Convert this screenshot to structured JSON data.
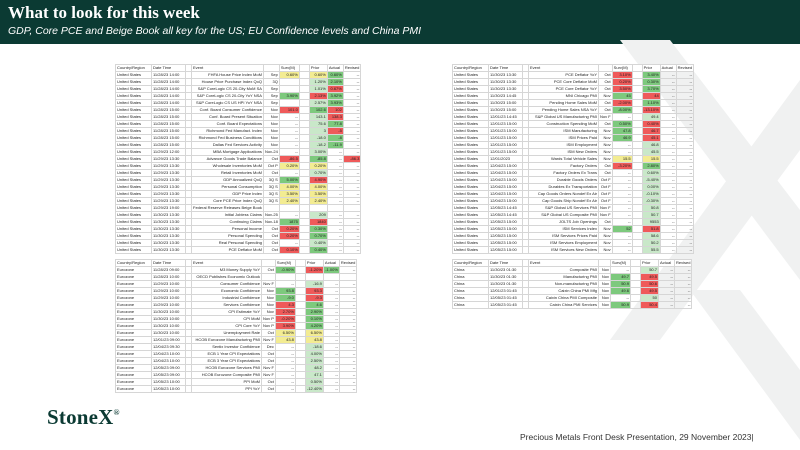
{
  "header": {
    "title": "What to look for this week",
    "subtitle": "GDP, Core PCE and Beige Book all key for the US; EU Confidence levels and China PMI"
  },
  "footer": {
    "logo": "StoneX",
    "logo_mark": "®",
    "text": "Precious Metals Front Desk Presentation, 29 November 2023|"
  },
  "columns": [
    "Country/Region",
    "Date Time",
    "",
    "Event",
    "",
    "Surv(M)",
    "",
    "Prior",
    "Actual",
    "Revised"
  ],
  "tables": {
    "us_left": [
      [
        "United States",
        "11/28/23 14:00",
        "",
        "FHFA House Price Index MoM",
        "Sep",
        "0.60%",
        "",
        "0.60%",
        "0.60%",
        "--"
      ],
      [
        "United States",
        "11/28/23 14:00",
        "",
        "House Price Purchase Index QoQ",
        "3Q",
        "",
        "",
        "1.20%",
        "2.10%",
        "--"
      ],
      [
        "United States",
        "11/28/23 14:00",
        "",
        "S&P CoreLogic CS 20-City MoM SA",
        "Sep",
        "",
        "",
        "1.01%",
        "0.67%",
        "--"
      ],
      [
        "United States",
        "11/28/23 14:00",
        "",
        "S&P CoreLogic CS 20-City YoY NSA",
        "Sep",
        "3.90%",
        "",
        "2.13%",
        "3.92%",
        "--"
      ],
      [
        "United States",
        "11/28/23 14:00",
        "",
        "S&P CoreLogic CS US HPI YoY NSA",
        "Sep",
        "",
        "",
        "2.57%",
        "3.93%",
        "--"
      ],
      [
        "United States",
        "11/28/23 15:00",
        "",
        "Conf. Board Consumer Confidence",
        "Nov",
        "101.0",
        "",
        "102.6",
        "102",
        "--"
      ],
      [
        "United States",
        "11/28/23 15:00",
        "",
        "Conf. Board Present Situation",
        "Nov",
        "--",
        "",
        "143.1",
        "138.3",
        "--"
      ],
      [
        "United States",
        "11/28/23 15:00",
        "",
        "Conf. Board Expectations",
        "Nov",
        "--",
        "",
        "75.6",
        "77.8",
        "--"
      ],
      [
        "United States",
        "11/28/23 15:00",
        "",
        "Richmond Fed Manufact. Index",
        "Nov",
        "--",
        "",
        "3",
        "-5",
        "--"
      ],
      [
        "United States",
        "11/28/23 15:00",
        "",
        "Richmond Fed Business Conditions",
        "Nov",
        "--",
        "",
        "-18.0",
        "-8",
        "--"
      ],
      [
        "United States",
        "11/28/23 15:00",
        "",
        "Dallas Fed Services Activity",
        "Nov",
        "--",
        "",
        "-18.2",
        "-11.9",
        "--"
      ],
      [
        "United States",
        "11/29/23 12:00",
        "",
        "MBA Mortgage Applications",
        "Nov-24",
        "--",
        "",
        "3.00%",
        "--",
        "--"
      ],
      [
        "United States",
        "11/29/23 13:30",
        "",
        "Advance Goods Trade Balance",
        "Oct",
        "-86.5",
        "",
        "-85.8",
        "--",
        "-86.3"
      ],
      [
        "United States",
        "11/29/23 13:30",
        "",
        "Wholesale Inventories MoM",
        "Oct P",
        "0.20%",
        "",
        "0.20%",
        "--",
        "--"
      ],
      [
        "United States",
        "11/29/23 13:30",
        "",
        "Retail Inventories MoM",
        "Oct",
        "--",
        "",
        "0.70%",
        "--",
        "--"
      ],
      [
        "United States",
        "11/29/23 13:30",
        "",
        "GDP Annualized QoQ",
        "3Q S",
        "5.00%",
        "",
        "4.90%",
        "--",
        "--"
      ],
      [
        "United States",
        "11/29/23 13:30",
        "",
        "Personal Consumption",
        "3Q S",
        "4.00%",
        "",
        "4.00%",
        "--",
        "--"
      ],
      [
        "United States",
        "11/29/23 13:30",
        "",
        "GDP Price Index",
        "3Q S",
        "3.50%",
        "",
        "3.50%",
        "--",
        "--"
      ],
      [
        "United States",
        "11/29/23 13:30",
        "",
        "Core PCE Price Index QoQ",
        "3Q S",
        "2.40%",
        "",
        "2.40%",
        "--",
        "--"
      ],
      [
        "United States",
        "11/29/23 19:00",
        "",
        "Federal Reserve Releases Beige Book",
        "",
        "",
        "",
        "",
        "",
        ""
      ],
      [
        "United States",
        "11/30/23 13:30",
        "",
        "Initial Jobless Claims",
        "Nov-25",
        "--",
        "",
        "209",
        "--",
        "--"
      ],
      [
        "United States",
        "11/30/23 13:30",
        "",
        "Continuing Claims",
        "Nov-18",
        "1875",
        "",
        "1840",
        "--",
        "--"
      ],
      [
        "United States",
        "11/30/23 13:30",
        "",
        "Personal Income",
        "Oct",
        "0.20%",
        "",
        "0.30%",
        "--",
        "--"
      ],
      [
        "United States",
        "11/30/23 13:30",
        "",
        "Personal Spending",
        "Oct",
        "0.20%",
        "",
        "0.70%",
        "--",
        "--"
      ],
      [
        "United States",
        "11/30/23 13:30",
        "",
        "Real Personal Spending",
        "Oct",
        "--",
        "",
        "0.40%",
        "--",
        "--"
      ],
      [
        "United States",
        "11/30/23 13:30",
        "",
        "PCE Deflator MoM",
        "Oct",
        "0.10%",
        "",
        "0.40%",
        "--",
        "--"
      ]
    ],
    "us_right": [
      [
        "United States",
        "11/30/23 13:30",
        "",
        "PCE Deflator YoY",
        "Oct",
        "3.10%",
        "",
        "3.40%",
        "--",
        "--"
      ],
      [
        "United States",
        "11/30/23 13:30",
        "",
        "PCE Core Deflator MoM",
        "Oct",
        "0.20%",
        "",
        "0.30%",
        "--",
        "--"
      ],
      [
        "United States",
        "11/30/23 13:30",
        "",
        "PCE Core Deflator YoY",
        "Oct",
        "3.50%",
        "",
        "3.70%",
        "--",
        "--"
      ],
      [
        "United States",
        "11/30/23 14:45",
        "",
        "MNI Chicago PMI",
        "Nov",
        "45",
        "",
        "44",
        "--",
        "--"
      ],
      [
        "United States",
        "11/30/23 15:00",
        "",
        "Pending Home Sales MoM",
        "Oct",
        "-2.00%",
        "",
        "1.10%",
        "--",
        "--"
      ],
      [
        "United States",
        "11/30/23 15:00",
        "",
        "Pending Home Sales NSA YoY",
        "Oct",
        "-8.00%",
        "",
        "-13.10%",
        "--",
        "--"
      ],
      [
        "United States",
        "12/01/23 14:45",
        "",
        "S&P Global US Manufacturing PMI",
        "Nov F",
        "--",
        "",
        "49.4",
        "--",
        "--"
      ],
      [
        "United States",
        "12/01/23 15:00",
        "",
        "Construction Spending MoM",
        "Oct",
        "0.50%",
        "",
        "0.40%",
        "--",
        "--"
      ],
      [
        "United States",
        "12/01/23 15:00",
        "",
        "ISM Manufacturing",
        "Nov",
        "47.8",
        "",
        "46.7",
        "--",
        "--"
      ],
      [
        "United States",
        "12/01/23 15:00",
        "",
        "ISM Prices Paid",
        "Nov",
        "46.9",
        "",
        "45.1",
        "--",
        "--"
      ],
      [
        "United States",
        "12/01/23 15:00",
        "",
        "ISM Employment",
        "Nov",
        "--",
        "",
        "46.8",
        "--",
        "--"
      ],
      [
        "United States",
        "12/01/23 15:00",
        "",
        "ISM New Orders",
        "Nov",
        "--",
        "",
        "45.5",
        "--",
        "--"
      ],
      [
        "United States",
        "12/01/2023",
        "",
        "Wards Total Vehicle Sales",
        "Nov",
        "15.5",
        "",
        "15.5",
        "--",
        "--"
      ],
      [
        "United States",
        "12/04/23 15:00",
        "",
        "Factory Orders",
        "Oct",
        "-3.20%",
        "",
        "2.80%",
        "--",
        "--"
      ],
      [
        "United States",
        "12/04/23 15:00",
        "",
        "Factory Orders Ex Trans",
        "Oct",
        "--",
        "",
        "0.60%",
        "--",
        "--"
      ],
      [
        "United States",
        "12/04/23 15:00",
        "",
        "Durable Goods Orders",
        "Oct F",
        "--",
        "",
        "-5.40%",
        "--",
        "--"
      ],
      [
        "United States",
        "12/04/23 15:00",
        "",
        "Durables Ex Transportation",
        "Oct F",
        "--",
        "",
        "0.00%",
        "--",
        "--"
      ],
      [
        "United States",
        "12/04/23 15:00",
        "",
        "Cap Goods Orders Nondef Ex Air",
        "Oct F",
        "--",
        "",
        "-0.10%",
        "--",
        "--"
      ],
      [
        "United States",
        "12/04/23 15:00",
        "",
        "Cap Goods Ship Nondef Ex Air",
        "Oct F",
        "--",
        "",
        "-0.30%",
        "--",
        "--"
      ],
      [
        "United States",
        "12/05/23 14:45",
        "",
        "S&P Global US Services PMI",
        "Nov F",
        "--",
        "",
        "50.8",
        "--",
        "--"
      ],
      [
        "United States",
        "12/05/23 14:45",
        "",
        "S&P Global US Composite PMI",
        "Nov F",
        "--",
        "",
        "50.7",
        "--",
        "--"
      ],
      [
        "United States",
        "12/05/23 15:00",
        "",
        "JOLTS Job Openings",
        "Oct",
        "--",
        "",
        "9553",
        "--",
        "--"
      ],
      [
        "United States",
        "12/05/23 15:00",
        "",
        "ISM Services Index",
        "Nov",
        "52",
        "",
        "51.8",
        "--",
        "--"
      ],
      [
        "United States",
        "12/05/23 15:00",
        "",
        "ISM Services Prices Paid",
        "Nov",
        "--",
        "",
        "58.6",
        "--",
        "--"
      ],
      [
        "United States",
        "12/05/23 15:00",
        "",
        "ISM Services Employment",
        "Nov",
        "--",
        "",
        "50.2",
        "--",
        "--"
      ],
      [
        "United States",
        "12/05/23 15:00",
        "",
        "ISM Services New Orders",
        "Nov",
        "--",
        "",
        "55.5",
        "--",
        "--"
      ]
    ],
    "eu": [
      [
        "Eurozone",
        "11/28/23 09:00",
        "",
        "M3 Money Supply YoY",
        "Oct",
        "-0.90%",
        "",
        "-1.20%",
        "-1.00%",
        "--"
      ],
      [
        "Eurozone",
        "11/28/23 10:00",
        "",
        "OECD Publishes Economic Outlook",
        "",
        "",
        "",
        "",
        "",
        ""
      ],
      [
        "Eurozone",
        "11/29/23 10:00",
        "",
        "Consumer Confidence",
        "Nov F",
        "--",
        "",
        "-16.9",
        "--",
        "--"
      ],
      [
        "Eurozone",
        "11/29/23 10:00",
        "",
        "Economic Confidence",
        "Nov",
        "93.8",
        "",
        "93.3",
        "--",
        "--"
      ],
      [
        "Eurozone",
        "11/29/23 10:00",
        "",
        "Industrial Confidence",
        "Nov",
        "-9.0",
        "",
        "-9.3",
        "--",
        "--"
      ],
      [
        "Eurozone",
        "11/29/23 10:00",
        "",
        "Services Confidence",
        "Nov",
        "4.3",
        "",
        "4.6",
        "--",
        "--"
      ],
      [
        "Eurozone",
        "11/30/23 10:00",
        "",
        "CPI Estimate YoY",
        "Nov",
        "2.70%",
        "",
        "2.90%",
        "--",
        "--"
      ],
      [
        "Eurozone",
        "11/30/23 10:00",
        "",
        "CPI MoM",
        "Nov P",
        "-0.20%",
        "",
        "0.10%",
        "--",
        "--"
      ],
      [
        "Eurozone",
        "11/30/23 10:00",
        "",
        "CPI Core YoY",
        "Nov P",
        "3.90%",
        "",
        "4.20%",
        "--",
        "--"
      ],
      [
        "Eurozone",
        "11/30/23 10:00",
        "",
        "Unemployment Rate",
        "Oct",
        "6.50%",
        "",
        "6.50%",
        "--",
        "--"
      ],
      [
        "Eurozone",
        "12/01/23 09:00",
        "",
        "HCOB Eurozone Manufacturing PMI",
        "Nov F",
        "43.8",
        "",
        "43.8",
        "--",
        "--"
      ],
      [
        "Eurozone",
        "12/04/23 09:30",
        "",
        "Sentix Investor Confidence",
        "Dec",
        "--",
        "",
        "-18.6",
        "--",
        "--"
      ],
      [
        "Eurozone",
        "12/04/23 10:00",
        "",
        "ECB 1 Year CPI Expectations",
        "Oct",
        "--",
        "",
        "4.00%",
        "--",
        "--"
      ],
      [
        "Eurozone",
        "12/04/23 10:00",
        "",
        "ECB 3 Year CPI Expectations",
        "Oct",
        "--",
        "",
        "2.50%",
        "--",
        "--"
      ],
      [
        "Eurozone",
        "12/05/23 09:00",
        "",
        "HCOB Eurozone Services PMI",
        "Nov F",
        "--",
        "",
        "48.2",
        "--",
        "--"
      ],
      [
        "Eurozone",
        "12/05/23 09:00",
        "",
        "HCOB Eurozone Composite PMI",
        "Nov F",
        "--",
        "",
        "47.1",
        "--",
        "--"
      ],
      [
        "Eurozone",
        "12/05/23 10:00",
        "",
        "PPI MoM",
        "Oct",
        "--",
        "",
        "0.50%",
        "--",
        "--"
      ],
      [
        "Eurozone",
        "12/05/23 10:00",
        "",
        "PPI YoY",
        "Oct",
        "--",
        "",
        "-12.40%",
        "--",
        "--"
      ]
    ],
    "china": [
      [
        "China",
        "11/30/23 01:30",
        "",
        "Composite PMI",
        "Nov",
        "--",
        "",
        "50.7",
        "--",
        "--"
      ],
      [
        "China",
        "11/30/23 01:30",
        "",
        "Manufacturing PMI",
        "Nov",
        "49.7",
        "",
        "49.5",
        "--",
        "--"
      ],
      [
        "China",
        "11/30/23 01:30",
        "",
        "Non-manufacturing PMI",
        "Nov",
        "50.9",
        "",
        "50.6",
        "--",
        "--"
      ],
      [
        "China",
        "12/01/23 01:45",
        "",
        "Caixin China PMI Mfg",
        "Nov",
        "49.6",
        "",
        "49.5",
        "--",
        "--"
      ],
      [
        "China",
        "12/05/23 01:45",
        "",
        "Caixin China PMI Composite",
        "Nov",
        "--",
        "",
        "50",
        "--",
        "--"
      ],
      [
        "China",
        "12/05/23 01:45",
        "",
        "Caixin China PMI Services",
        "Nov",
        "50.9",
        "",
        "50.4",
        "--",
        "--"
      ]
    ]
  },
  "colors": {
    "header_bg": "#0b3a33",
    "positive": "#7dc97d",
    "negative": "#ef5a5a",
    "neutral": "#f3ec92"
  }
}
